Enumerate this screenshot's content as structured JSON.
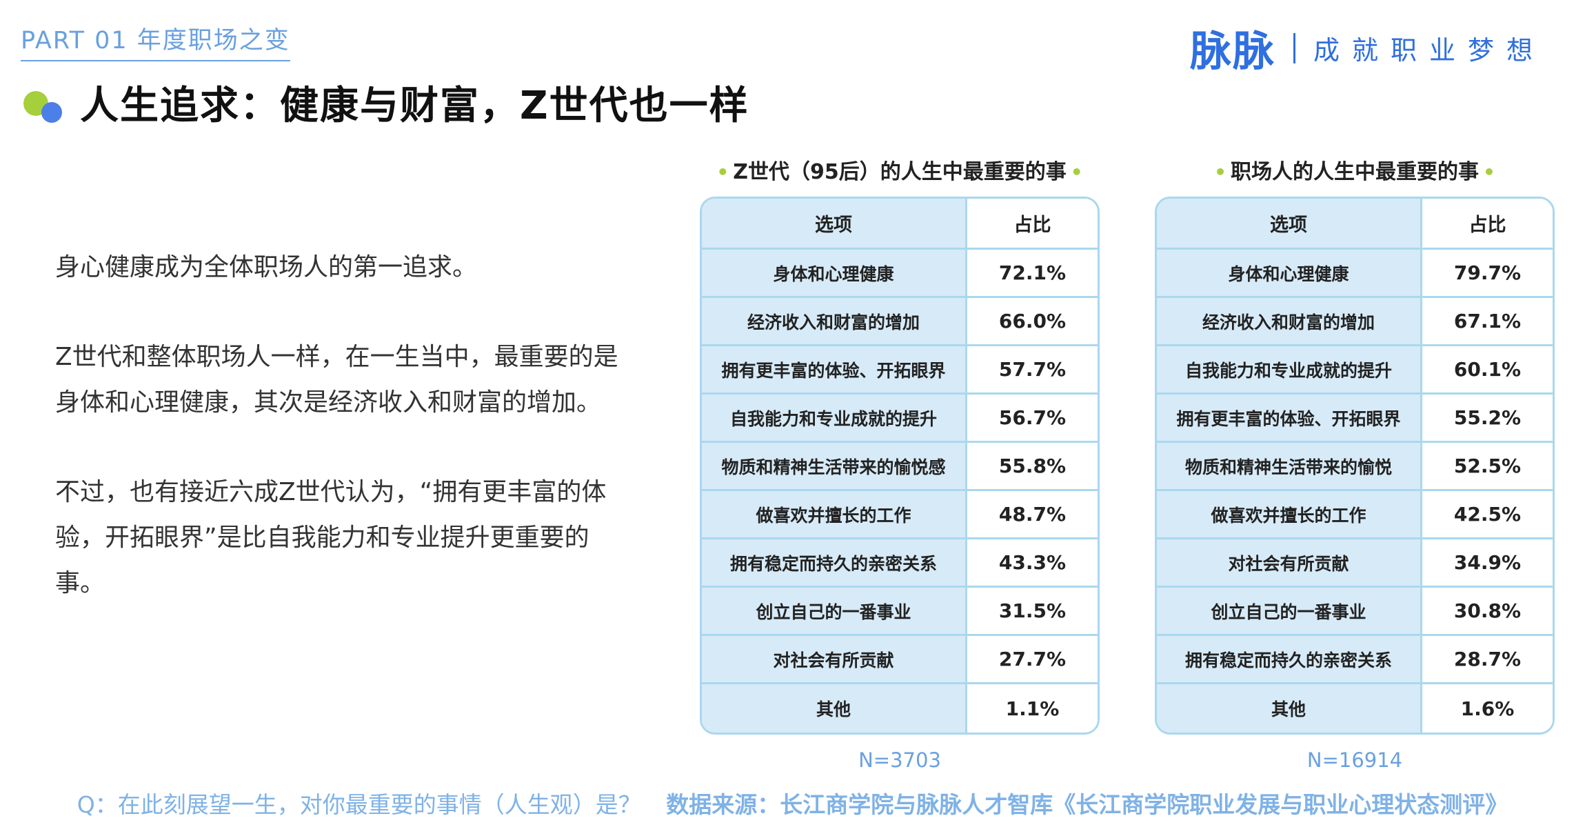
{
  "header": {
    "part_label": "PART 01 年度职场之变",
    "brand_logo": "脉脉",
    "brand_slogan": "成就职业梦想"
  },
  "title": "人生追求：健康与财富，Z世代也一样",
  "body": {
    "paragraphs": [
      "身心健康成为全体职场人的第一追求。",
      "Z世代和整体职场人一样，在一生当中，最重要的是身体和心理健康，其次是经济收入和财富的增加。",
      "不过，也有接近六成Z世代认为，“拥有更丰富的体验，开拓眼界”是比自我能力和专业提升更重要的事。"
    ]
  },
  "colors": {
    "accent_blue": "#2f6fe0",
    "light_blue": "#6aa0df",
    "table_border": "#a9d8ee",
    "table_fill": "#d7eaf7",
    "dot_green": "#a6cf3c",
    "dot_blue": "#4c7fe8"
  },
  "chart_data": [
    {
      "type": "table",
      "title": "Z世代（95后）的人生中最重要的事",
      "columns": [
        "选项",
        "占比"
      ],
      "rows": [
        [
          "身体和心理健康",
          "72.1%"
        ],
        [
          "经济收入和财富的增加",
          "66.0%"
        ],
        [
          "拥有更丰富的体验、开拓眼界",
          "57.7%"
        ],
        [
          "自我能力和专业成就的提升",
          "56.7%"
        ],
        [
          "物质和精神生活带来的愉悦感",
          "55.8%"
        ],
        [
          "做喜欢并擅长的工作",
          "48.7%"
        ],
        [
          "拥有稳定而持久的亲密关系",
          "43.3%"
        ],
        [
          "创立自己的一番事业",
          "31.5%"
        ],
        [
          "对社会有所贡献",
          "27.7%"
        ],
        [
          "其他",
          "1.1%"
        ]
      ],
      "n": "N=3703"
    },
    {
      "type": "table",
      "title": "职场人的人生中最重要的事",
      "columns": [
        "选项",
        "占比"
      ],
      "rows": [
        [
          "身体和心理健康",
          "79.7%"
        ],
        [
          "经济收入和财富的增加",
          "67.1%"
        ],
        [
          "自我能力和专业成就的提升",
          "60.1%"
        ],
        [
          "拥有更丰富的体验、开拓眼界",
          "55.2%"
        ],
        [
          "物质和精神生活带来的愉悦",
          "52.5%"
        ],
        [
          "做喜欢并擅长的工作",
          "42.5%"
        ],
        [
          "对社会有所贡献",
          "34.9%"
        ],
        [
          "创立自己的一番事业",
          "30.8%"
        ],
        [
          "拥有稳定而持久的亲密关系",
          "28.7%"
        ],
        [
          "其他",
          "1.6%"
        ]
      ],
      "n": "N=16914"
    }
  ],
  "footer": {
    "question": "Q：在此刻展望一生，对你最重要的事情（人生观）是？",
    "source": "数据来源：长江商学院与脉脉人才智库《长江商学院职业发展与职业心理状态测评》"
  }
}
